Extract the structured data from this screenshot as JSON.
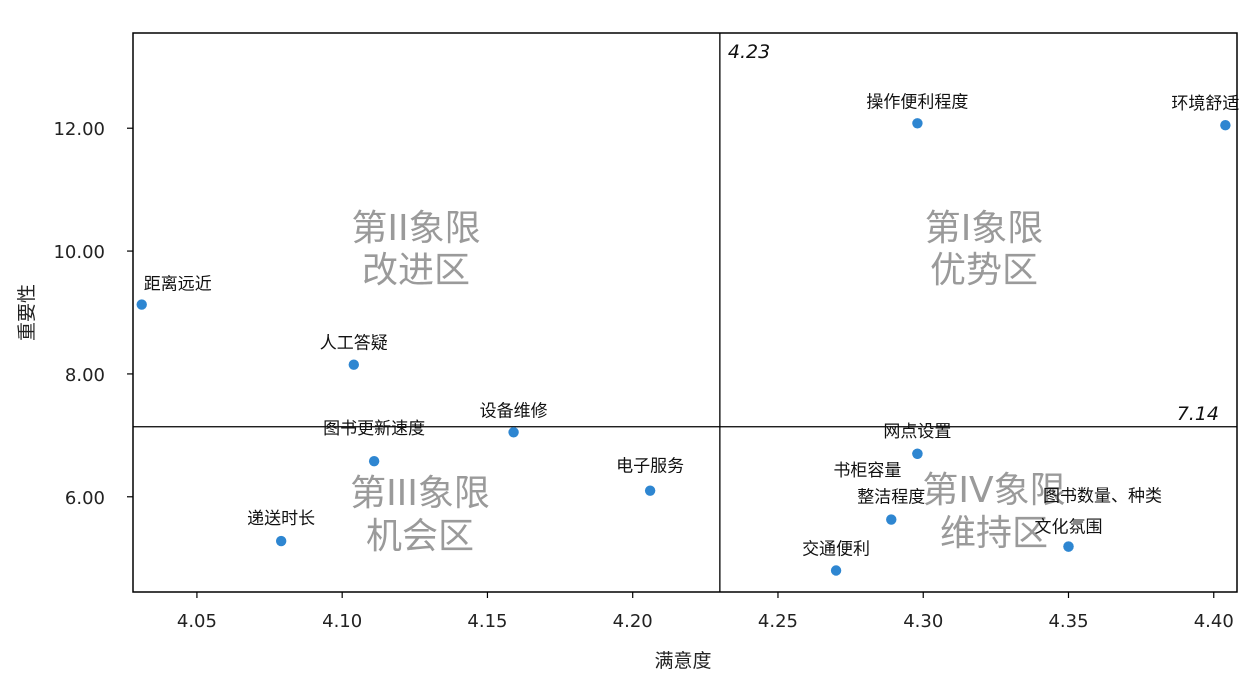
{
  "chart_data": {
    "type": "scatter",
    "title": "",
    "xlabel": "满意度",
    "ylabel": "重要性",
    "xlim": [
      4.028,
      4.408
    ],
    "ylim": [
      4.45,
      13.55
    ],
    "x_ticks": [
      4.05,
      4.1,
      4.15,
      4.2,
      4.25,
      4.3,
      4.35,
      4.4
    ],
    "x_tick_labels": [
      "4.05",
      "4.10",
      "4.15",
      "4.20",
      "4.25",
      "4.30",
      "4.35",
      "4.40"
    ],
    "y_ticks": [
      6,
      8,
      10,
      12
    ],
    "y_tick_labels": [
      "6.00",
      "8.00",
      "10.00",
      "12.00"
    ],
    "grid": false,
    "point_color": "#2e86d1",
    "ref_line_x": {
      "value": 4.23,
      "label": "4.23"
    },
    "ref_line_y": {
      "value": 7.14,
      "label": "7.14"
    },
    "points": [
      {
        "label": "距离远近",
        "x": 4.031,
        "y": 9.13
      },
      {
        "label": "人工答疑",
        "x": 4.104,
        "y": 8.15
      },
      {
        "label": "设备维修",
        "x": 4.159,
        "y": 7.05
      },
      {
        "label": "图书更新速度",
        "x": 4.111,
        "y": 6.58
      },
      {
        "label": "电子服务",
        "x": 4.206,
        "y": 6.1
      },
      {
        "label": "递送时长",
        "x": 4.079,
        "y": 5.28
      },
      {
        "label": "操作便利程度",
        "x": 4.298,
        "y": 12.08
      },
      {
        "label": "环境舒适",
        "x": 4.404,
        "y": 12.05
      },
      {
        "label": "网点设置",
        "x": 4.298,
        "y": 6.7
      },
      {
        "label": "书柜容量",
        "x": 4.298,
        "y": 6.7
      },
      {
        "label": "整洁程度",
        "x": 4.289,
        "y": 5.63
      },
      {
        "label": "图书数量、种类",
        "x": 4.35,
        "y": 5.19
      },
      {
        "label": "文化氛围",
        "x": 4.35,
        "y": 5.19
      },
      {
        "label": "交通便利",
        "x": 4.27,
        "y": 4.8
      }
    ],
    "quadrants": [
      {
        "line1": "第I象限",
        "line2": "优势区"
      },
      {
        "line1": "第II象限",
        "line2": "改进区"
      },
      {
        "line1": "第III象限",
        "line2": "机会区"
      },
      {
        "line1": "第IV象限",
        "line2": "维持区"
      }
    ]
  }
}
